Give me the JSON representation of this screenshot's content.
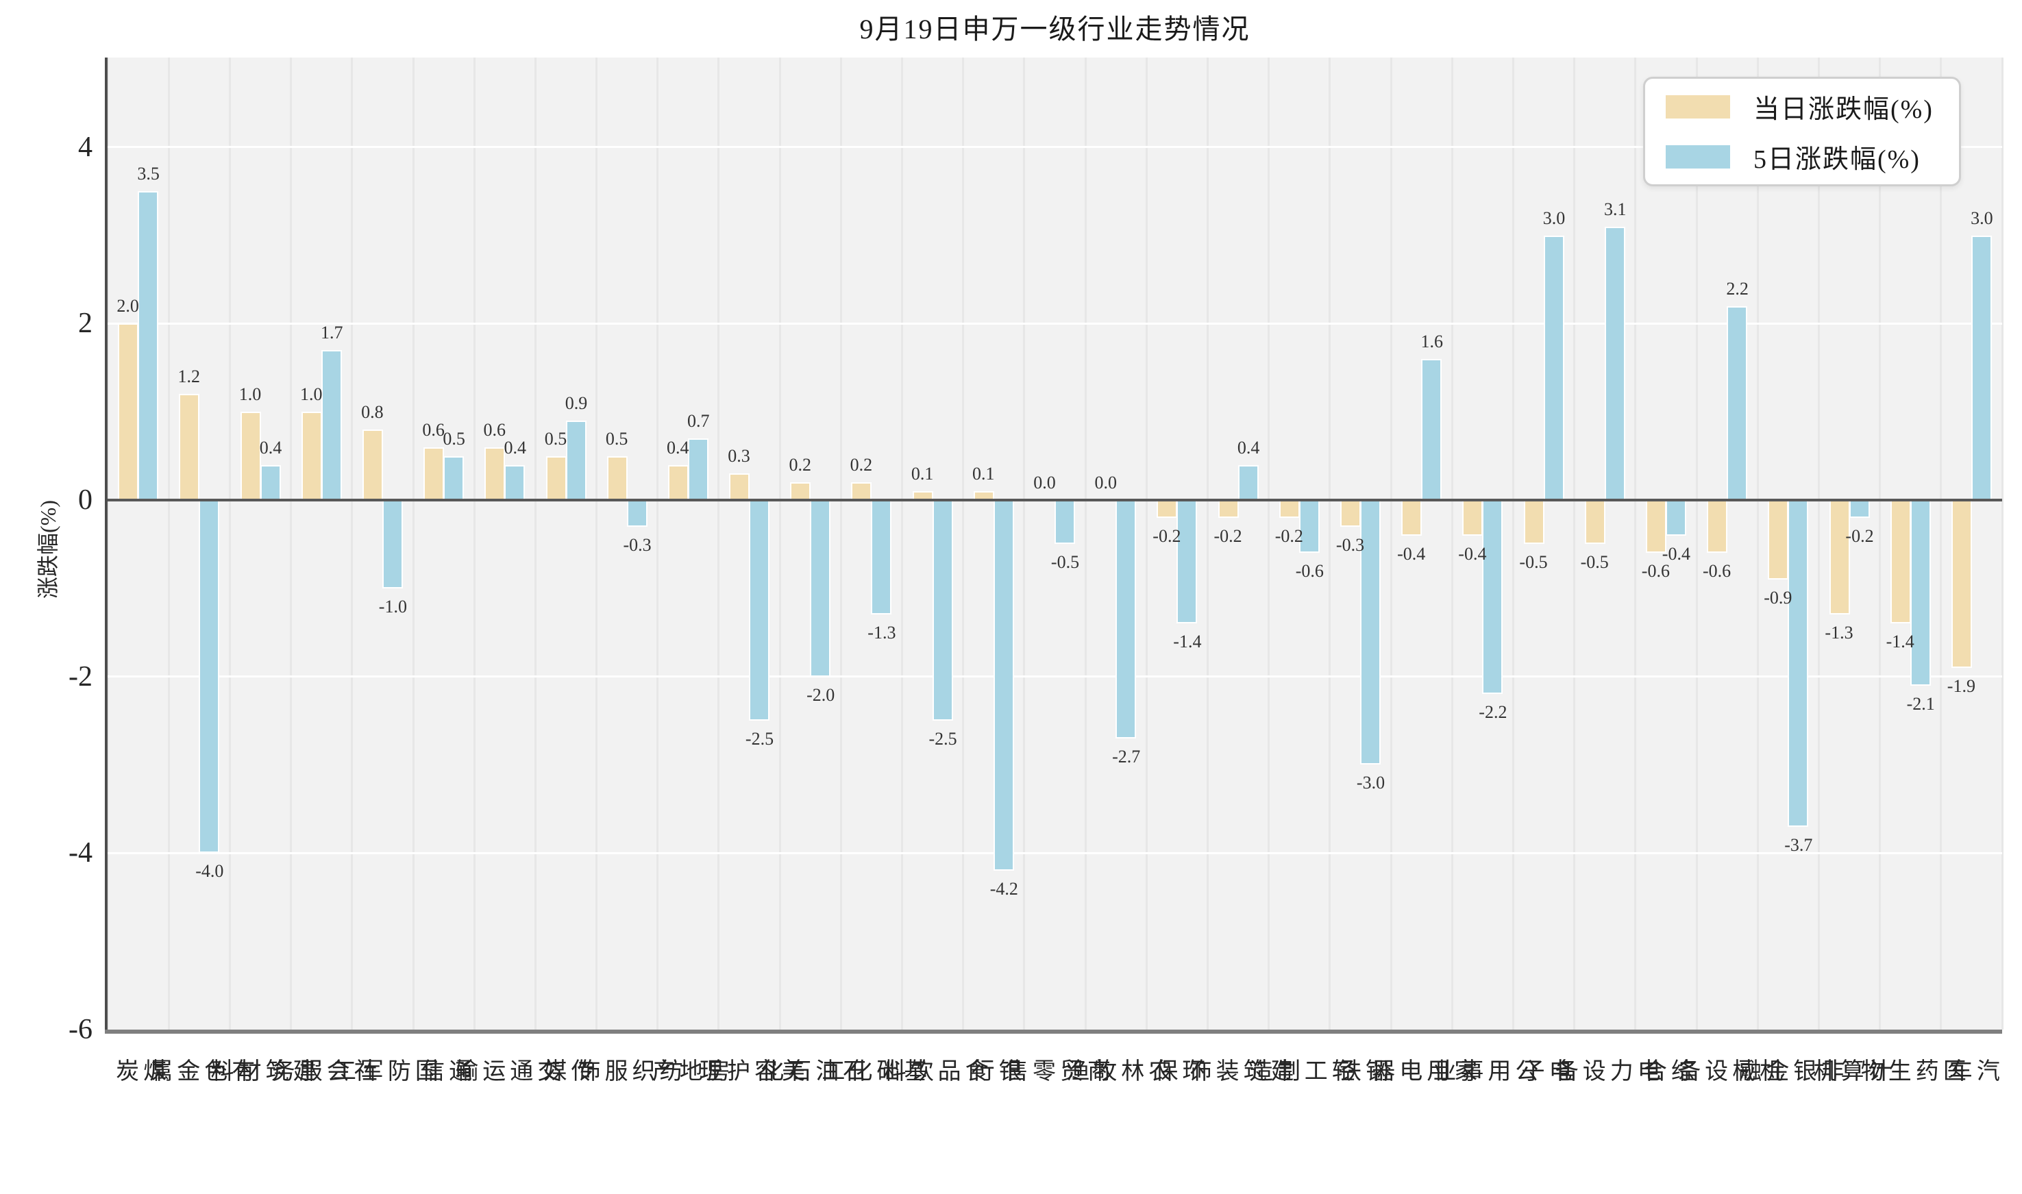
{
  "title": "9月19日申万一级行业走势情况",
  "colors": {
    "daily_bar": "#f2ddb0",
    "five_day_bar": "#a8d5e4",
    "plot_background": "#f2f2f2",
    "zero_line": "#595959",
    "grid_horizontal": "#ffffff",
    "grid_vertical": "#e7e7e7"
  },
  "legend": {
    "daily_label": "当日涨跌幅(%)",
    "five_day_label": "5日涨跌幅(%)"
  },
  "chart_data": {
    "type": "bar",
    "title": "9月19日申万一级行业走势情况",
    "xlabel": "",
    "ylabel": "涨跌幅(%)",
    "ylim": [
      -6,
      5
    ],
    "yticks": [
      4,
      2,
      0,
      -2,
      -4,
      -6
    ],
    "grid": true,
    "legend_position": "upper right",
    "categories": [
      "煤炭",
      "有色金属",
      "建筑材料",
      "社会服务",
      "国防军工",
      "通信",
      "交通运输",
      "传媒",
      "纺织服饰",
      "房地产",
      "美容护理",
      "石油石化",
      "基础化工",
      "食品饮料",
      "银行",
      "商贸零售",
      "农林牧渔",
      "环保",
      "建筑装饰",
      "轻工制造",
      "钢铁",
      "家用电器",
      "公用事业",
      "电子",
      "电力设备",
      "综合",
      "机械设备",
      "非银金融",
      "计算机",
      "医药生物",
      "汽车"
    ],
    "series": [
      {
        "name": "当日涨跌幅(%)",
        "color": "#f2ddb0",
        "values": [
          2.0,
          1.2,
          1.0,
          1.0,
          0.8,
          0.6,
          0.6,
          0.5,
          0.5,
          0.4,
          0.3,
          0.2,
          0.2,
          0.1,
          0.1,
          0.0,
          0.0,
          -0.2,
          -0.2,
          -0.2,
          -0.3,
          -0.4,
          -0.4,
          -0.5,
          -0.5,
          -0.6,
          -0.6,
          -0.9,
          -1.3,
          -1.4,
          -1.9
        ]
      },
      {
        "name": "5日涨跌幅(%)",
        "color": "#a8d5e4",
        "values": [
          3.5,
          -4.0,
          0.4,
          1.7,
          -1.0,
          0.5,
          0.4,
          0.9,
          -0.3,
          0.7,
          -2.5,
          -2.0,
          -1.3,
          -2.5,
          -4.2,
          -0.5,
          -2.7,
          -1.4,
          0.4,
          -0.6,
          -3.0,
          1.6,
          -2.2,
          3.0,
          3.1,
          -0.4,
          2.2,
          -3.7,
          -0.2,
          -2.1,
          3.0
        ]
      }
    ]
  }
}
